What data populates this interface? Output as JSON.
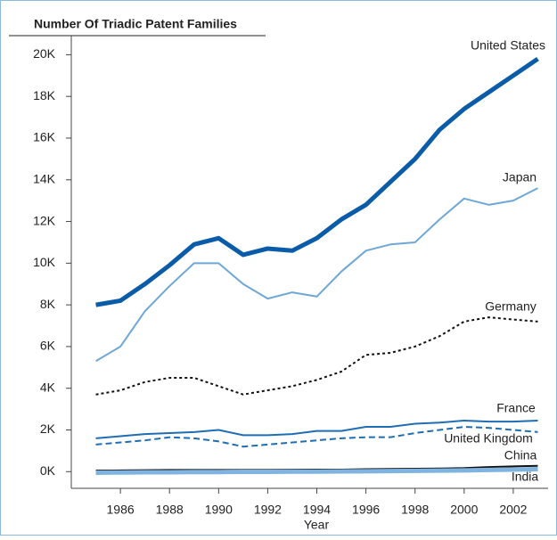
{
  "chart_data": {
    "type": "line",
    "title": "Number Of Triadic Patent Families",
    "x_label": "Year",
    "x": [
      1985,
      1986,
      1987,
      1988,
      1989,
      1990,
      1991,
      1992,
      1993,
      1994,
      1995,
      1996,
      1997,
      1998,
      1999,
      2000,
      2001,
      2002,
      2003
    ],
    "xlim": [
      1984,
      2003.6
    ],
    "xticks": [
      1986,
      1988,
      1990,
      1992,
      1994,
      1996,
      1998,
      2000,
      2002
    ],
    "ylim": [
      -800,
      21000
    ],
    "yticks": [
      {
        "value": 0,
        "label": "0K"
      },
      {
        "value": 2000,
        "label": "2K"
      },
      {
        "value": 4000,
        "label": "4K"
      },
      {
        "value": 6000,
        "label": "6K"
      },
      {
        "value": 8000,
        "label": "8K"
      },
      {
        "value": 10000,
        "label": "10K"
      },
      {
        "value": 12000,
        "label": "12K"
      },
      {
        "value": 14000,
        "label": "14K"
      },
      {
        "value": 16000,
        "label": "16K"
      },
      {
        "value": 18000,
        "label": "18K"
      },
      {
        "value": 20000,
        "label": "20K"
      }
    ],
    "series": [
      {
        "name": "United States",
        "color": "#0b5ca8",
        "line_style": "solid",
        "values": [
          8000,
          8200,
          9000,
          9900,
          10900,
          11200,
          10400,
          10700,
          10600,
          11200,
          12100,
          12800,
          13900,
          15000,
          16400,
          17400,
          18200,
          19000,
          19800
        ]
      },
      {
        "name": "Japan",
        "color": "#6ea7d6",
        "line_style": "solid",
        "values": [
          5300,
          6000,
          7700,
          8900,
          10000,
          10000,
          9000,
          8300,
          8600,
          8400,
          9600,
          10600,
          10900,
          11000,
          12100,
          13100,
          12800,
          13000,
          13600
        ]
      },
      {
        "name": "Germany",
        "color": "#111111",
        "line_style": "dotted",
        "values": [
          3700,
          3900,
          4300,
          4500,
          4500,
          4100,
          3700,
          3900,
          4100,
          4400,
          4800,
          5600,
          5700,
          6000,
          6500,
          7200,
          7400,
          7300,
          7200
        ]
      },
      {
        "name": "France",
        "color": "#1f6db3",
        "line_style": "solid",
        "values": [
          1600,
          1700,
          1800,
          1850,
          1900,
          2000,
          1750,
          1750,
          1800,
          1950,
          1950,
          2150,
          2150,
          2300,
          2350,
          2450,
          2400,
          2400,
          2450
        ]
      },
      {
        "name": "United Kingdom",
        "color": "#1f6db3",
        "line_style": "dashed",
        "values": [
          1300,
          1400,
          1500,
          1650,
          1600,
          1450,
          1200,
          1300,
          1400,
          1500,
          1600,
          1650,
          1650,
          1850,
          2000,
          2150,
          2100,
          2000,
          1900
        ]
      },
      {
        "name": "China",
        "color": "#111111",
        "line_style": "solid",
        "values": [
          50,
          60,
          70,
          80,
          80,
          80,
          80,
          80,
          90,
          100,
          100,
          120,
          130,
          140,
          150,
          170,
          220,
          250,
          280
        ]
      },
      {
        "name": "India",
        "color": "#7fb3e0",
        "line_style": "thick",
        "values": [
          -50,
          -40,
          -30,
          -30,
          -20,
          -20,
          -10,
          -10,
          0,
          0,
          10,
          20,
          30,
          40,
          50,
          60,
          80,
          100,
          120
        ]
      }
    ]
  }
}
